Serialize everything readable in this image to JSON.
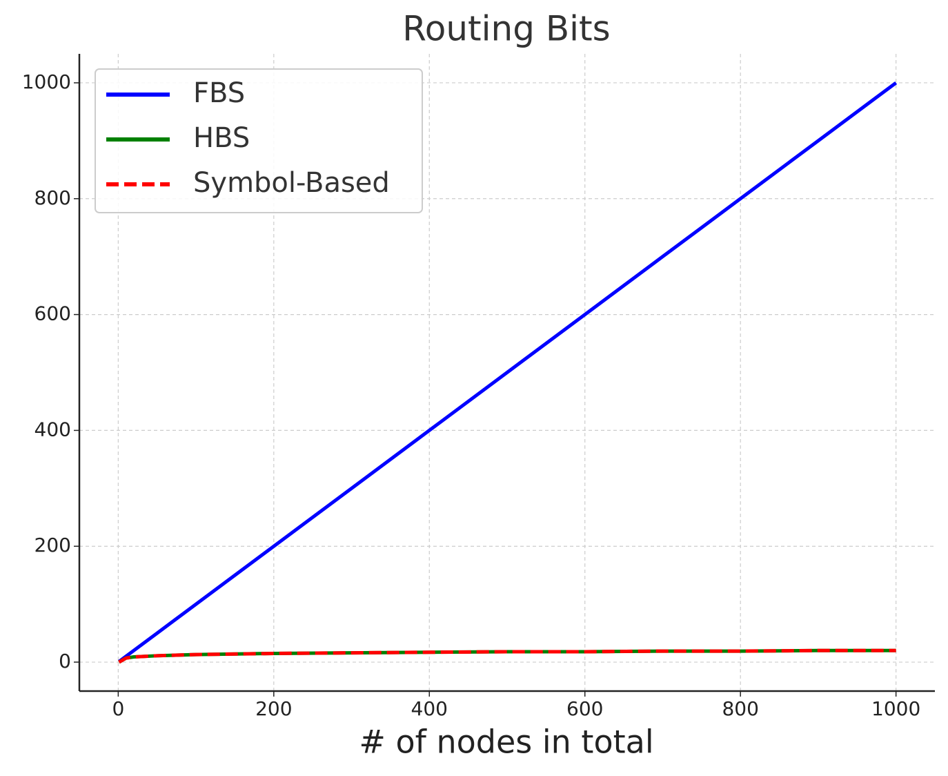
{
  "chart_data": {
    "type": "line",
    "title": "Routing Bits",
    "x_label": "# of nodes in total",
    "x": [
      1,
      10,
      20,
      50,
      100,
      200,
      300,
      400,
      500,
      600,
      700,
      800,
      900,
      1000
    ],
    "series": [
      {
        "name": "FBS",
        "color": "#0000ff",
        "dash": "solid",
        "values": [
          1,
          10,
          20,
          50,
          100,
          200,
          300,
          400,
          500,
          600,
          700,
          800,
          900,
          1000
        ]
      },
      {
        "name": "HBS",
        "color": "#008000",
        "dash": "solid",
        "values": [
          0,
          7,
          9,
          11,
          13,
          15,
          16,
          17,
          18,
          18,
          19,
          19,
          20,
          20
        ]
      },
      {
        "name": "Symbol-Based",
        "color": "#ff0000",
        "dash": "dashed",
        "values": [
          0,
          7,
          9,
          11,
          13,
          15,
          16,
          17,
          18,
          18,
          19,
          19,
          20,
          20
        ]
      }
    ],
    "xlim": [
      -50,
      1050
    ],
    "ylim": [
      -50,
      1050
    ],
    "xticks": [
      0,
      200,
      400,
      600,
      800,
      1000
    ],
    "yticks": [
      0,
      200,
      400,
      600,
      800,
      1000
    ],
    "grid": true,
    "legend": "upper-left"
  }
}
